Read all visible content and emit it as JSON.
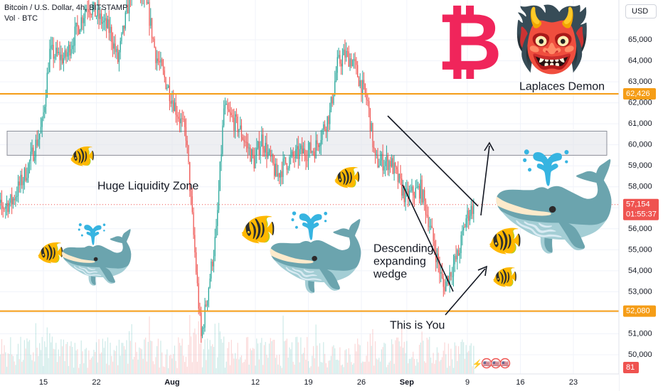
{
  "header": {
    "symbol_line": "Bitcoin / U.S. Dollar, 4h, BITSTAMP",
    "volume_line": "Vol · BTC"
  },
  "currency_button": "USD",
  "colors": {
    "up": "#26a69a",
    "down": "#ef5350",
    "level_line": "#f59d17",
    "zone_fill": "#e0e2e8",
    "zone_border": "#8c8f99",
    "whale": "#3d85c6",
    "bitcoin_logo": "#f0255b",
    "price_label_bg": "#ef5350",
    "price_tag_orange": "#f59d17"
  },
  "chart_data": {
    "type": "candlestick",
    "title": "Bitcoin / U.S. Dollar, 4h, BITSTAMP",
    "y_ticks": [
      50000,
      51000,
      52000,
      53000,
      54000,
      55000,
      56000,
      57000,
      58000,
      59000,
      60000,
      61000,
      62000,
      63000,
      64000,
      65000
    ],
    "y_tick_labels": [
      "50,000",
      "51,000",
      "52,000",
      "53,000",
      "54,000",
      "55,000",
      "56,000",
      "57,000",
      "58,000",
      "59,000",
      "60,000",
      "61,000",
      "62,000",
      "63,000",
      "64,000",
      "65,000"
    ],
    "ylim": [
      49000,
      66500
    ],
    "x_ticks": [
      "15",
      "22",
      "Aug",
      "12",
      "19",
      "26",
      "Sep",
      "9",
      "16",
      "23"
    ],
    "x_tick_dates": [
      "2024-07-15",
      "2024-07-22",
      "2024-08-01",
      "2024-08-12",
      "2024-08-19",
      "2024-08-26",
      "2024-09-01",
      "2024-09-09",
      "2024-09-16",
      "2024-09-23"
    ],
    "xlim": [
      "2024-07-08",
      "2024-09-27"
    ],
    "data_end": "2024-09-10",
    "support_level": {
      "value": 52080,
      "label": "52,080"
    },
    "resistance_level": {
      "value": 62426,
      "label": "62,426"
    },
    "current_price": {
      "value": 57154,
      "label": "57,154",
      "countdown": "01:55:37"
    },
    "volume_badge": "81",
    "liquidity_zone": {
      "low": 59500,
      "high": 60650
    },
    "anchors": [
      {
        "date": "2024-07-08",
        "price": 56700
      },
      {
        "date": "2024-07-11",
        "price": 57300
      },
      {
        "date": "2024-07-13",
        "price": 58800
      },
      {
        "date": "2024-07-15",
        "price": 60900
      },
      {
        "date": "2024-07-16",
        "price": 64400
      },
      {
        "date": "2024-07-18",
        "price": 64100
      },
      {
        "date": "2024-07-21",
        "price": 66700
      },
      {
        "date": "2024-07-24",
        "price": 65400
      },
      {
        "date": "2024-07-25",
        "price": 64000
      },
      {
        "date": "2024-07-27",
        "price": 67900
      },
      {
        "date": "2024-07-29",
        "price": 66400
      },
      {
        "date": "2024-07-30",
        "price": 64300
      },
      {
        "date": "2024-08-02",
        "price": 61400
      },
      {
        "date": "2024-08-03",
        "price": 60500
      },
      {
        "date": "2024-08-05",
        "price": 50800
      },
      {
        "date": "2024-08-07",
        "price": 55800
      },
      {
        "date": "2024-08-08",
        "price": 61700
      },
      {
        "date": "2024-08-10",
        "price": 60800
      },
      {
        "date": "2024-08-12",
        "price": 59200
      },
      {
        "date": "2024-08-13",
        "price": 60300
      },
      {
        "date": "2024-08-15",
        "price": 58500
      },
      {
        "date": "2024-08-16",
        "price": 59100
      },
      {
        "date": "2024-08-18",
        "price": 59600
      },
      {
        "date": "2024-08-20",
        "price": 59800
      },
      {
        "date": "2024-08-22",
        "price": 61500
      },
      {
        "date": "2024-08-23",
        "price": 63800
      },
      {
        "date": "2024-08-24",
        "price": 64300
      },
      {
        "date": "2024-08-25",
        "price": 64000
      },
      {
        "date": "2024-08-27",
        "price": 62000
      },
      {
        "date": "2024-08-28",
        "price": 59200
      },
      {
        "date": "2024-08-30",
        "price": 59200
      },
      {
        "date": "2024-09-01",
        "price": 57500
      },
      {
        "date": "2024-09-03",
        "price": 57900
      },
      {
        "date": "2024-09-04",
        "price": 56500
      },
      {
        "date": "2024-09-06",
        "price": 53200
      },
      {
        "date": "2024-09-07",
        "price": 54000
      },
      {
        "date": "2024-09-08",
        "price": 54800
      },
      {
        "date": "2024-09-09",
        "price": 56500
      },
      {
        "date": "2024-09-10",
        "price": 57154
      }
    ]
  },
  "annotations": {
    "liquidity_label": "Huge Liquidity Zone",
    "wedge_label": [
      "Descending",
      "expanding",
      "wedge"
    ],
    "you_label": "This is You",
    "demon_label": "Laplaces Demon",
    "bitcoin_symbol": "₿",
    "demon_emoji": "👹",
    "fish_emoji": "🐠",
    "whale_emoji": "🐳",
    "flag_emoji": "🇺🇸"
  }
}
